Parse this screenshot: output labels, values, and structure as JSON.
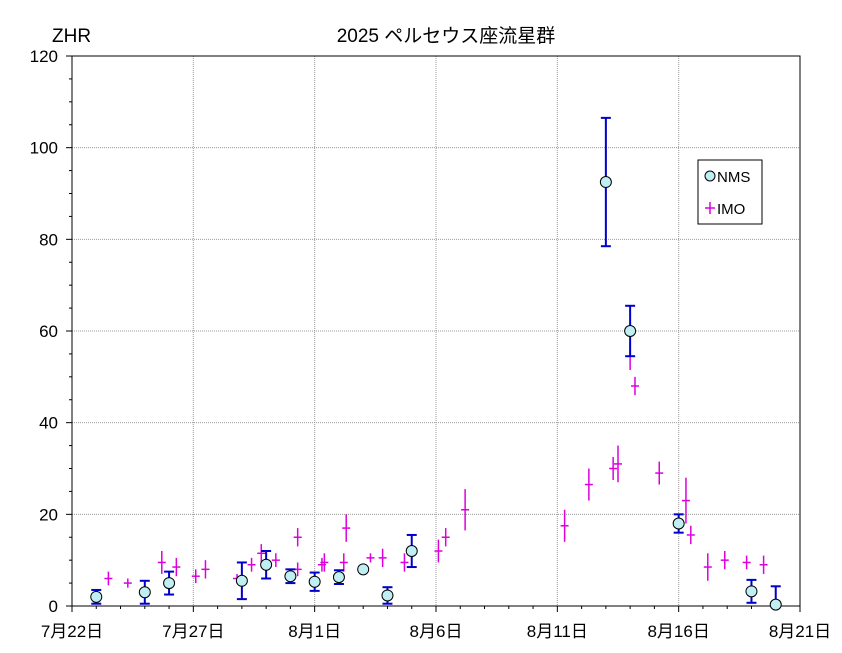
{
  "chart_data": {
    "type": "scatter",
    "title": "2025 ペルセウス座流星群",
    "ylabel": "ZHR",
    "xlabel": "",
    "x_tick_labels": [
      "7月22日",
      "7月27日",
      "8月1日",
      "8月6日",
      "8月11日",
      "8月16日",
      "8月21日"
    ],
    "x_tick_days": [
      0,
      5,
      10,
      15,
      20,
      25,
      30
    ],
    "xlim": [
      0,
      30
    ],
    "ylim": [
      0,
      120
    ],
    "y_ticks": [
      0,
      20,
      40,
      60,
      80,
      100,
      120
    ],
    "grid": true,
    "legend_position": "right",
    "series": [
      {
        "name": "NMS",
        "marker": "circle",
        "color": "#0000cc",
        "fill": "#bfeff3",
        "points": [
          {
            "x": 1.0,
            "y": 2,
            "err": 1.5
          },
          {
            "x": 3.0,
            "y": 3,
            "err": 2.5
          },
          {
            "x": 4.0,
            "y": 5,
            "err": 2.5
          },
          {
            "x": 7.0,
            "y": 5.5,
            "err": 4
          },
          {
            "x": 8.0,
            "y": 9,
            "err": 3
          },
          {
            "x": 9.0,
            "y": 6.5,
            "err": 1.5
          },
          {
            "x": 10.0,
            "y": 5.3,
            "err": 2
          },
          {
            "x": 11.0,
            "y": 6.3,
            "err": 1.5
          },
          {
            "x": 12.0,
            "y": 8,
            "err": 0
          },
          {
            "x": 13.0,
            "y": 2.3,
            "err": 1.8
          },
          {
            "x": 14.0,
            "y": 12,
            "err": 3.5
          },
          {
            "x": 22.0,
            "y": 92.5,
            "err": 14
          },
          {
            "x": 23.0,
            "y": 60,
            "err": 5.5
          },
          {
            "x": 25.0,
            "y": 18,
            "err": 2
          },
          {
            "x": 28.0,
            "y": 3.2,
            "err": 2.5
          },
          {
            "x": 29.0,
            "y": 0.3,
            "err": 4
          }
        ]
      },
      {
        "name": "IMO",
        "marker": "plus",
        "color": "#dd00dd",
        "points": [
          {
            "x": 1.5,
            "y": 6,
            "err": 1.5
          },
          {
            "x": 2.3,
            "y": 5,
            "err": 1
          },
          {
            "x": 3.7,
            "y": 9.5,
            "err": 2.5
          },
          {
            "x": 4.3,
            "y": 8.5,
            "err": 2
          },
          {
            "x": 5.1,
            "y": 6.5,
            "err": 1.5
          },
          {
            "x": 5.5,
            "y": 8,
            "err": 2
          },
          {
            "x": 6.8,
            "y": 6,
            "err": 1
          },
          {
            "x": 7.4,
            "y": 9,
            "err": 1.5
          },
          {
            "x": 7.8,
            "y": 11.5,
            "err": 2
          },
          {
            "x": 8.4,
            "y": 10,
            "err": 1.5
          },
          {
            "x": 9.3,
            "y": 8,
            "err": 1.5
          },
          {
            "x": 9.3,
            "y": 15,
            "err": 2
          },
          {
            "x": 10.3,
            "y": 9,
            "err": 1.5
          },
          {
            "x": 10.4,
            "y": 9.5,
            "err": 2
          },
          {
            "x": 11.2,
            "y": 9.5,
            "err": 2
          },
          {
            "x": 11.3,
            "y": 17,
            "err": 3
          },
          {
            "x": 12.3,
            "y": 10.5,
            "err": 1
          },
          {
            "x": 12.8,
            "y": 10.5,
            "err": 2
          },
          {
            "x": 13.7,
            "y": 9.5,
            "err": 2
          },
          {
            "x": 15.1,
            "y": 12,
            "err": 2.5
          },
          {
            "x": 15.4,
            "y": 15,
            "err": 2
          },
          {
            "x": 16.2,
            "y": 21,
            "err": 4.5
          },
          {
            "x": 20.3,
            "y": 17.5,
            "err": 3.5
          },
          {
            "x": 21.3,
            "y": 26.5,
            "err": 3.5
          },
          {
            "x": 22.3,
            "y": 30,
            "err": 2.5
          },
          {
            "x": 22.5,
            "y": 31,
            "err": 4
          },
          {
            "x": 23.0,
            "y": 54.5,
            "err": 3
          },
          {
            "x": 23.2,
            "y": 48,
            "err": 2
          },
          {
            "x": 24.2,
            "y": 29,
            "err": 2.5
          },
          {
            "x": 25.3,
            "y": 23,
            "err": 5
          },
          {
            "x": 25.5,
            "y": 15.5,
            "err": 2
          },
          {
            "x": 26.2,
            "y": 8.5,
            "err": 3
          },
          {
            "x": 26.9,
            "y": 10,
            "err": 2
          },
          {
            "x": 27.8,
            "y": 9.5,
            "err": 1.5
          },
          {
            "x": 28.5,
            "y": 9,
            "err": 2
          }
        ]
      }
    ]
  }
}
